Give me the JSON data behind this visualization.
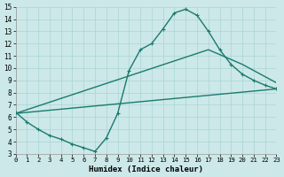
{
  "xlabel": "Humidex (Indice chaleur)",
  "xlim": [
    0,
    23
  ],
  "ylim": [
    3,
    15
  ],
  "xticks": [
    0,
    1,
    2,
    3,
    4,
    5,
    6,
    7,
    8,
    9,
    10,
    11,
    12,
    13,
    14,
    15,
    16,
    17,
    18,
    19,
    20,
    21,
    22,
    23
  ],
  "yticks": [
    3,
    4,
    5,
    6,
    7,
    8,
    9,
    10,
    11,
    12,
    13,
    14,
    15
  ],
  "bg_color": "#cce8e8",
  "grid_color": "#aad4d4",
  "line_color": "#1a7a6e",
  "curve1_x": [
    0,
    1,
    2,
    3,
    4,
    5,
    6,
    7,
    8,
    9,
    10,
    11,
    12,
    13,
    14,
    15,
    16,
    17,
    18,
    19,
    20,
    21,
    22,
    23
  ],
  "curve1_y": [
    6.4,
    5.6,
    5.0,
    4.5,
    4.2,
    3.8,
    3.5,
    3.2,
    4.3,
    6.3,
    9.8,
    11.5,
    12.0,
    13.2,
    14.5,
    14.8,
    14.3,
    13.0,
    11.5,
    10.3,
    9.5,
    9.0,
    8.6,
    8.3
  ],
  "curve2_x": [
    0,
    17,
    20,
    23
  ],
  "curve2_y": [
    6.3,
    11.5,
    10.3,
    8.8
  ],
  "curve3_x": [
    0,
    23
  ],
  "curve3_y": [
    6.3,
    8.3
  ],
  "line_width": 1.0,
  "marker": "+"
}
